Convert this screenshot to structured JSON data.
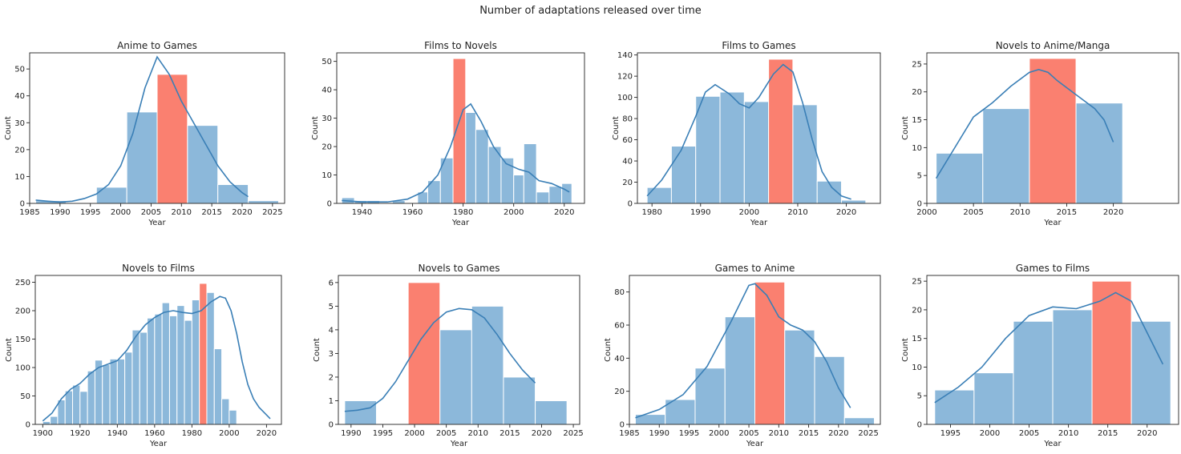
{
  "figure": {
    "title": "Number of adaptations released over time",
    "colors": {
      "bar": "#8cb8da",
      "highlight": "#fa8070",
      "kde": "#3a7fb6",
      "axis": "#222222"
    }
  },
  "chart_data": [
    {
      "type": "histogram",
      "title": "Anime to Games",
      "xlabel": "Year",
      "ylabel": "Count",
      "xlim": [
        1985,
        2027
      ],
      "ylim": [
        0,
        56
      ],
      "xticks": [
        1985,
        1990,
        1995,
        2000,
        2005,
        2010,
        2015,
        2020,
        2025
      ],
      "yticks": [
        0,
        10,
        20,
        30,
        40,
        50
      ],
      "bins": [
        {
          "x0": 1986,
          "x1": 1991,
          "value": 1
        },
        {
          "x0": 1991,
          "x1": 1996,
          "value": 0
        },
        {
          "x0": 1996,
          "x1": 2001,
          "value": 6
        },
        {
          "x0": 2001,
          "x1": 2006,
          "value": 34
        },
        {
          "x0": 2006,
          "x1": 2011,
          "value": 48,
          "highlight": true
        },
        {
          "x0": 2011,
          "x1": 2016,
          "value": 29
        },
        {
          "x0": 2016,
          "x1": 2021,
          "value": 7
        },
        {
          "x0": 2021,
          "x1": 2026,
          "value": 1
        }
      ],
      "kde": [
        [
          1986,
          1.2
        ],
        [
          1988,
          0.8
        ],
        [
          1990,
          0.5
        ],
        [
          1992,
          0.8
        ],
        [
          1994,
          1.8
        ],
        [
          1996,
          3.5
        ],
        [
          1998,
          7
        ],
        [
          2000,
          14
        ],
        [
          2002,
          26
        ],
        [
          2004,
          43
        ],
        [
          2006,
          54.5
        ],
        [
          2008,
          48
        ],
        [
          2010,
          38
        ],
        [
          2012,
          30
        ],
        [
          2014,
          22
        ],
        [
          2016,
          14
        ],
        [
          2018,
          8
        ],
        [
          2020,
          4
        ],
        [
          2021,
          2.5
        ]
      ]
    },
    {
      "type": "histogram",
      "title": "Films to Novels",
      "xlabel": "Year",
      "ylabel": "Count",
      "xlim": [
        1930,
        2028
      ],
      "ylim": [
        0,
        53
      ],
      "xticks": [
        1940,
        1960,
        1980,
        2000,
        2020
      ],
      "yticks": [
        0,
        10,
        20,
        30,
        40,
        50
      ],
      "bins": [
        {
          "x0": 1932,
          "x1": 1937,
          "value": 2
        },
        {
          "x0": 1937,
          "x1": 1942,
          "value": 1
        },
        {
          "x0": 1942,
          "x1": 1947,
          "value": 1
        },
        {
          "x0": 1947,
          "x1": 1952,
          "value": 0
        },
        {
          "x0": 1952,
          "x1": 1957,
          "value": 1
        },
        {
          "x0": 1957,
          "x1": 1962,
          "value": 0
        },
        {
          "x0": 1962,
          "x1": 1966,
          "value": 4
        },
        {
          "x0": 1966,
          "x1": 1971,
          "value": 8
        },
        {
          "x0": 1971,
          "x1": 1976,
          "value": 16
        },
        {
          "x0": 1976,
          "x1": 1981,
          "value": 51,
          "highlight": true
        },
        {
          "x0": 1981,
          "x1": 1985,
          "value": 32
        },
        {
          "x0": 1985,
          "x1": 1990,
          "value": 26
        },
        {
          "x0": 1990,
          "x1": 1995,
          "value": 20
        },
        {
          "x0": 1995,
          "x1": 2000,
          "value": 16
        },
        {
          "x0": 2000,
          "x1": 2004,
          "value": 10
        },
        {
          "x0": 2004,
          "x1": 2009,
          "value": 21
        },
        {
          "x0": 2009,
          "x1": 2014,
          "value": 4
        },
        {
          "x0": 2014,
          "x1": 2019,
          "value": 6
        },
        {
          "x0": 2019,
          "x1": 2023,
          "value": 7
        }
      ],
      "kde": [
        [
          1932,
          1
        ],
        [
          1940,
          0.5
        ],
        [
          1950,
          0.5
        ],
        [
          1958,
          1.5
        ],
        [
          1964,
          4
        ],
        [
          1970,
          10
        ],
        [
          1975,
          20
        ],
        [
          1980,
          33
        ],
        [
          1983,
          35
        ],
        [
          1987,
          29
        ],
        [
          1992,
          20
        ],
        [
          1997,
          14
        ],
        [
          2002,
          12
        ],
        [
          2006,
          11
        ],
        [
          2010,
          8
        ],
        [
          2015,
          7
        ],
        [
          2020,
          5
        ],
        [
          2022,
          4
        ]
      ]
    },
    {
      "type": "histogram",
      "title": "Films to Games",
      "xlabel": "Year",
      "ylabel": "Count",
      "xlim": [
        1977,
        2027
      ],
      "ylim": [
        0,
        142
      ],
      "xticks": [
        1980,
        1990,
        2000,
        2010,
        2020
      ],
      "yticks": [
        0,
        20,
        40,
        60,
        80,
        100,
        120,
        140
      ],
      "bins": [
        {
          "x0": 1979,
          "x1": 1984,
          "value": 15
        },
        {
          "x0": 1984,
          "x1": 1989,
          "value": 54
        },
        {
          "x0": 1989,
          "x1": 1994,
          "value": 101
        },
        {
          "x0": 1994,
          "x1": 1999,
          "value": 105
        },
        {
          "x0": 1999,
          "x1": 2004,
          "value": 96
        },
        {
          "x0": 2004,
          "x1": 2009,
          "value": 136,
          "highlight": true
        },
        {
          "x0": 2009,
          "x1": 2014,
          "value": 93
        },
        {
          "x0": 2014,
          "x1": 2019,
          "value": 21
        },
        {
          "x0": 2019,
          "x1": 2024,
          "value": 3
        }
      ],
      "kde": [
        [
          1979,
          7
        ],
        [
          1982,
          22
        ],
        [
          1986,
          50
        ],
        [
          1989,
          82
        ],
        [
          1991,
          105
        ],
        [
          1993,
          112
        ],
        [
          1996,
          103
        ],
        [
          1998,
          94
        ],
        [
          2000,
          90
        ],
        [
          2002,
          100
        ],
        [
          2005,
          122
        ],
        [
          2007,
          131
        ],
        [
          2009,
          124
        ],
        [
          2011,
          95
        ],
        [
          2013,
          60
        ],
        [
          2015,
          30
        ],
        [
          2017,
          15
        ],
        [
          2019,
          7
        ],
        [
          2021,
          4
        ]
      ]
    },
    {
      "type": "histogram",
      "title": "Novels to Anime/Manga",
      "xlabel": "Year",
      "ylabel": "Count",
      "xlim": [
        2000,
        2027
      ],
      "ylim": [
        0,
        27
      ],
      "xticks": [
        2000,
        2005,
        2010,
        2015,
        2020
      ],
      "yticks": [
        0,
        5,
        10,
        15,
        20,
        25
      ],
      "bins": [
        {
          "x0": 2001,
          "x1": 2006,
          "value": 9
        },
        {
          "x0": 2006,
          "x1": 2011,
          "value": 17
        },
        {
          "x0": 2011,
          "x1": 2016,
          "value": 26,
          "highlight": true
        },
        {
          "x0": 2016,
          "x1": 2021,
          "value": 18
        }
      ],
      "kde": [
        [
          2001,
          4.5
        ],
        [
          2003,
          10
        ],
        [
          2005,
          15.5
        ],
        [
          2007,
          18
        ],
        [
          2009,
          21
        ],
        [
          2011,
          23.5
        ],
        [
          2012,
          24
        ],
        [
          2013,
          23.5
        ],
        [
          2014,
          22
        ],
        [
          2016,
          19.5
        ],
        [
          2018,
          17
        ],
        [
          2019,
          15
        ],
        [
          2020,
          11
        ]
      ]
    },
    {
      "type": "histogram",
      "title": "Novels to Films",
      "xlabel": "Year",
      "ylabel": "Count",
      "xlim": [
        1896,
        2028
      ],
      "ylim": [
        0,
        262
      ],
      "xticks": [
        1900,
        1920,
        1940,
        1960,
        1980,
        2000,
        2020
      ],
      "yticks": [
        0,
        50,
        100,
        150,
        200,
        250
      ],
      "bins": [
        {
          "x0": 1900,
          "x1": 1904,
          "value": 5
        },
        {
          "x0": 1904,
          "x1": 1908,
          "value": 14
        },
        {
          "x0": 1908,
          "x1": 1912,
          "value": 43
        },
        {
          "x0": 1912,
          "x1": 1916,
          "value": 59
        },
        {
          "x0": 1916,
          "x1": 1920,
          "value": 69
        },
        {
          "x0": 1920,
          "x1": 1924,
          "value": 58
        },
        {
          "x0": 1924,
          "x1": 1928,
          "value": 94
        },
        {
          "x0": 1928,
          "x1": 1932,
          "value": 113
        },
        {
          "x0": 1932,
          "x1": 1936,
          "value": 105
        },
        {
          "x0": 1936,
          "x1": 1940,
          "value": 115
        },
        {
          "x0": 1940,
          "x1": 1944,
          "value": 115
        },
        {
          "x0": 1944,
          "x1": 1948,
          "value": 127
        },
        {
          "x0": 1948,
          "x1": 1952,
          "value": 166
        },
        {
          "x0": 1952,
          "x1": 1956,
          "value": 162
        },
        {
          "x0": 1956,
          "x1": 1960,
          "value": 187
        },
        {
          "x0": 1960,
          "x1": 1964,
          "value": 194
        },
        {
          "x0": 1964,
          "x1": 1968,
          "value": 214
        },
        {
          "x0": 1968,
          "x1": 1972,
          "value": 191
        },
        {
          "x0": 1972,
          "x1": 1976,
          "value": 209
        },
        {
          "x0": 1976,
          "x1": 1980,
          "value": 183
        },
        {
          "x0": 1980,
          "x1": 1984,
          "value": 219
        },
        {
          "x0": 1984,
          "x1": 1988,
          "value": 248,
          "highlight": true
        },
        {
          "x0": 1988,
          "x1": 1992,
          "value": 232
        },
        {
          "x0": 1992,
          "x1": 1996,
          "value": 133
        },
        {
          "x0": 1996,
          "x1": 2000,
          "value": 45
        },
        {
          "x0": 2000,
          "x1": 2004,
          "value": 25
        }
      ],
      "kde": [
        [
          1900,
          6
        ],
        [
          1905,
          20
        ],
        [
          1910,
          45
        ],
        [
          1915,
          62
        ],
        [
          1920,
          72
        ],
        [
          1925,
          88
        ],
        [
          1930,
          100
        ],
        [
          1935,
          106
        ],
        [
          1940,
          112
        ],
        [
          1945,
          130
        ],
        [
          1950,
          155
        ],
        [
          1955,
          175
        ],
        [
          1960,
          188
        ],
        [
          1965,
          197
        ],
        [
          1970,
          200
        ],
        [
          1975,
          197
        ],
        [
          1980,
          195
        ],
        [
          1985,
          200
        ],
        [
          1990,
          215
        ],
        [
          1995,
          225
        ],
        [
          1998,
          222
        ],
        [
          2001,
          200
        ],
        [
          2004,
          160
        ],
        [
          2007,
          110
        ],
        [
          2010,
          70
        ],
        [
          2013,
          45
        ],
        [
          2016,
          30
        ],
        [
          2019,
          20
        ],
        [
          2022,
          10
        ]
      ]
    },
    {
      "type": "histogram",
      "title": "Novels to Games",
      "xlabel": "Year",
      "ylabel": "Count",
      "xlim": [
        1988,
        2026
      ],
      "ylim": [
        0,
        6.3
      ],
      "xticks": [
        1990,
        1995,
        2000,
        2005,
        2010,
        2015,
        2020,
        2025
      ],
      "yticks": [
        0,
        1,
        2,
        3,
        4,
        5,
        6
      ],
      "bins": [
        {
          "x0": 1989,
          "x1": 1994,
          "value": 1
        },
        {
          "x0": 1994,
          "x1": 1999,
          "value": 0
        },
        {
          "x0": 1999,
          "x1": 2004,
          "value": 6,
          "highlight": true
        },
        {
          "x0": 2004,
          "x1": 2009,
          "value": 4
        },
        {
          "x0": 2009,
          "x1": 2014,
          "value": 5
        },
        {
          "x0": 2014,
          "x1": 2019,
          "value": 2
        },
        {
          "x0": 2019,
          "x1": 2024,
          "value": 1
        }
      ],
      "kde": [
        [
          1989,
          0.55
        ],
        [
          1991,
          0.6
        ],
        [
          1993,
          0.7
        ],
        [
          1995,
          1.1
        ],
        [
          1997,
          1.8
        ],
        [
          1999,
          2.7
        ],
        [
          2001,
          3.6
        ],
        [
          2003,
          4.3
        ],
        [
          2005,
          4.75
        ],
        [
          2007,
          4.9
        ],
        [
          2009,
          4.85
        ],
        [
          2011,
          4.5
        ],
        [
          2013,
          3.8
        ],
        [
          2015,
          3
        ],
        [
          2017,
          2.3
        ],
        [
          2019,
          1.75
        ]
      ]
    },
    {
      "type": "histogram",
      "title": "Games to Anime",
      "xlabel": "Year",
      "ylabel": "Count",
      "xlim": [
        1985,
        2027
      ],
      "ylim": [
        0,
        90
      ],
      "xticks": [
        1985,
        1990,
        1995,
        2000,
        2005,
        2010,
        2015,
        2020,
        2025
      ],
      "yticks": [
        0,
        20,
        40,
        60,
        80
      ],
      "bins": [
        {
          "x0": 1986,
          "x1": 1991,
          "value": 6
        },
        {
          "x0": 1991,
          "x1": 1996,
          "value": 15
        },
        {
          "x0": 1996,
          "x1": 2001,
          "value": 34
        },
        {
          "x0": 2001,
          "x1": 2006,
          "value": 65
        },
        {
          "x0": 2006,
          "x1": 2011,
          "value": 86,
          "highlight": true
        },
        {
          "x0": 2011,
          "x1": 2016,
          "value": 57
        },
        {
          "x0": 2016,
          "x1": 2021,
          "value": 41
        },
        {
          "x0": 2021,
          "x1": 2026,
          "value": 4
        }
      ],
      "kde": [
        [
          1986,
          4
        ],
        [
          1990,
          9
        ],
        [
          1994,
          18
        ],
        [
          1998,
          35
        ],
        [
          2002,
          62
        ],
        [
          2005,
          84
        ],
        [
          2006,
          85
        ],
        [
          2008,
          78
        ],
        [
          2010,
          65
        ],
        [
          2012,
          60
        ],
        [
          2014,
          57
        ],
        [
          2016,
          50
        ],
        [
          2018,
          38
        ],
        [
          2020,
          22
        ],
        [
          2022,
          10
        ]
      ]
    },
    {
      "type": "histogram",
      "title": "Games to Films",
      "xlabel": "Year",
      "ylabel": "Count",
      "xlim": [
        1992,
        2024
      ],
      "ylim": [
        0,
        26
      ],
      "xticks": [
        1995,
        2000,
        2005,
        2010,
        2015,
        2020
      ],
      "yticks": [
        0,
        5,
        10,
        15,
        20,
        25
      ],
      "bins": [
        {
          "x0": 1993,
          "x1": 1998,
          "value": 6
        },
        {
          "x0": 1998,
          "x1": 2003,
          "value": 9
        },
        {
          "x0": 2003,
          "x1": 2008,
          "value": 18
        },
        {
          "x0": 2008,
          "x1": 2013,
          "value": 20
        },
        {
          "x0": 2013,
          "x1": 2018,
          "value": 25,
          "highlight": true
        },
        {
          "x0": 2018,
          "x1": 2023,
          "value": 18
        }
      ],
      "kde": [
        [
          1993,
          3.8
        ],
        [
          1996,
          6.5
        ],
        [
          1999,
          10
        ],
        [
          2002,
          15
        ],
        [
          2005,
          19
        ],
        [
          2008,
          20.5
        ],
        [
          2011,
          20.2
        ],
        [
          2014,
          21.5
        ],
        [
          2016,
          23
        ],
        [
          2018,
          21.5
        ],
        [
          2020,
          16
        ],
        [
          2022,
          10.5
        ]
      ]
    }
  ]
}
